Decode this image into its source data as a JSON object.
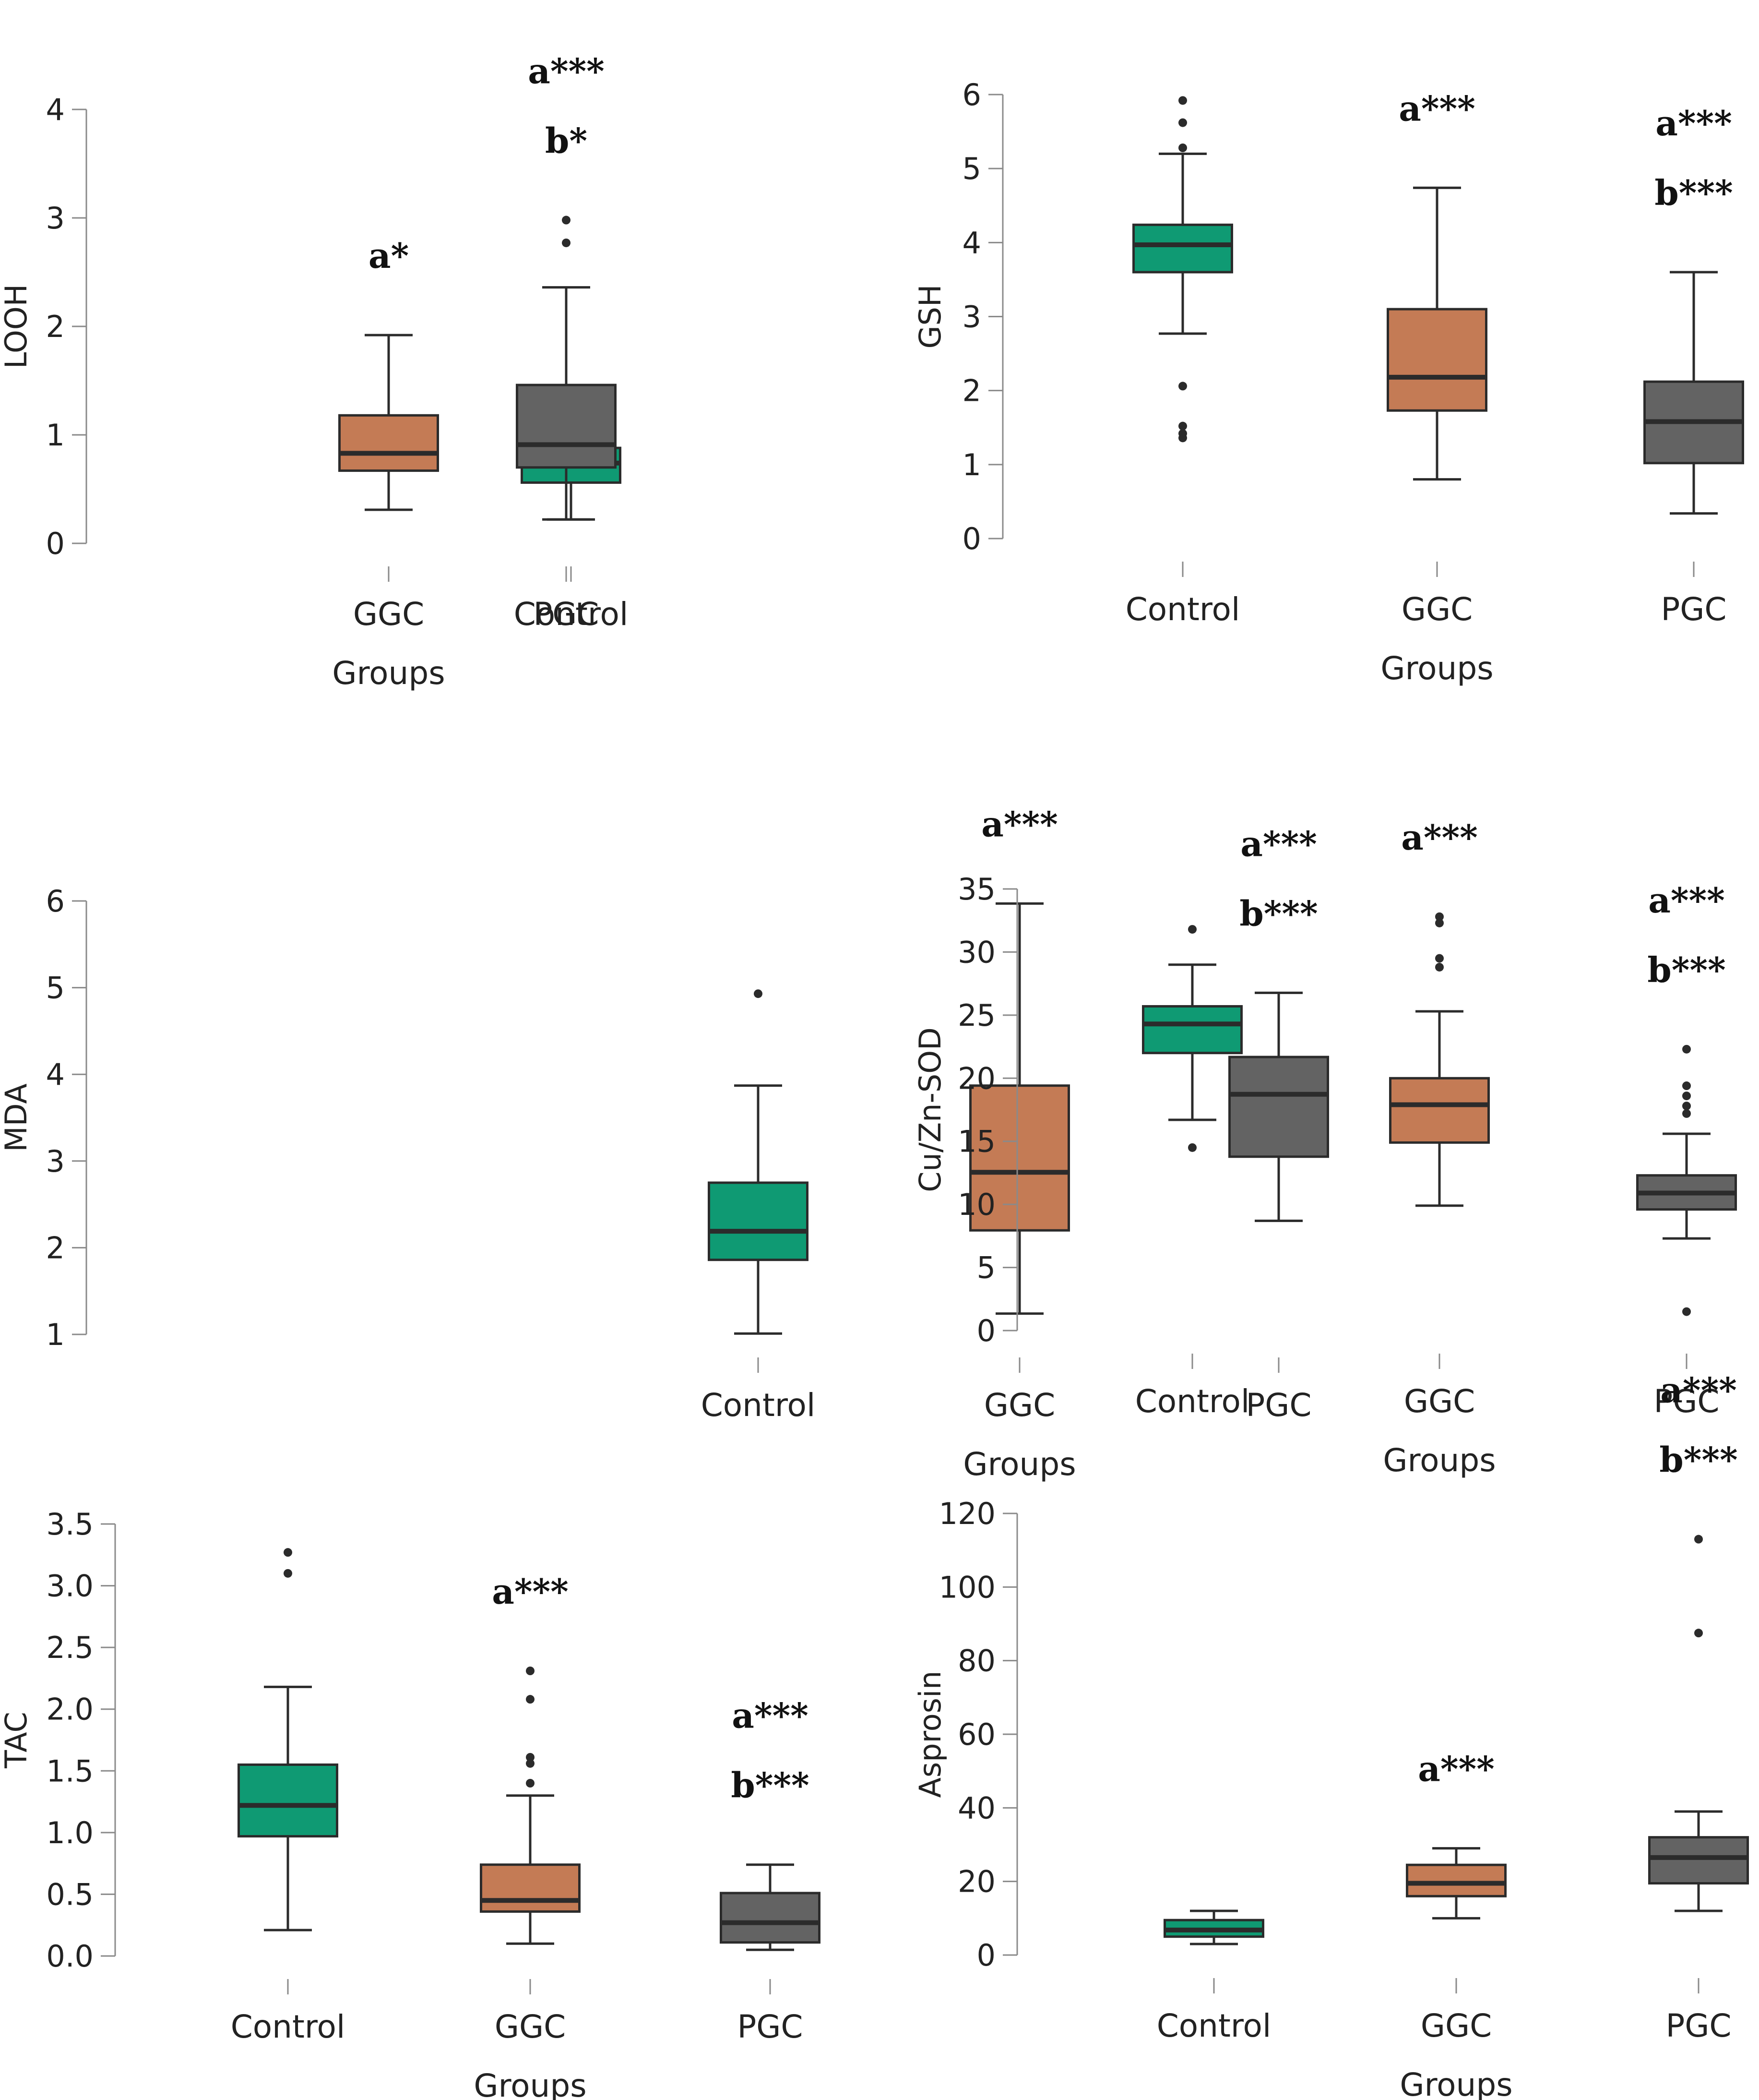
{
  "colors": {
    "Control": "#0f9a73",
    "GGC": "#c47b55",
    "PGC": "#636363",
    "line": "#2b2b2b",
    "axis": "#8a8a8a"
  },
  "chart_data": [
    {
      "type": "boxplot",
      "ylabel": "LOOH",
      "xlabel": "Groups",
      "categories": [
        "Control",
        "GGC",
        "PGC"
      ],
      "ylim": [
        0,
        4
      ],
      "yticks": [
        0,
        1,
        2,
        3,
        4
      ],
      "ytick_labels": [
        "0",
        "1",
        "2",
        "3",
        "4"
      ],
      "boxes": [
        {
          "group": "Control",
          "whisker_low": 0.22,
          "q1": 0.56,
          "median": 0.74,
          "q3": 0.88,
          "whisker_high": 1.2,
          "outliers": []
        },
        {
          "group": "GGC",
          "whisker_low": 0.31,
          "q1": 0.67,
          "median": 0.83,
          "q3": 1.18,
          "whisker_high": 1.92,
          "outliers": []
        },
        {
          "group": "PGC",
          "whisker_low": 0.22,
          "q1": 0.7,
          "median": 0.91,
          "q3": 1.46,
          "whisker_high": 2.36,
          "outliers": [
            2.77,
            2.98
          ]
        }
      ],
      "annotations": [
        {
          "group": "GGC",
          "lines": [
            "a*"
          ]
        },
        {
          "group": "PGC",
          "lines": [
            "a***",
            "b*"
          ]
        }
      ]
    },
    {
      "type": "boxplot",
      "ylabel": "GSH",
      "xlabel": "Groups",
      "categories": [
        "Control",
        "GGC",
        "PGC"
      ],
      "ylim": [
        0,
        6
      ],
      "yticks": [
        0,
        1,
        2,
        3,
        4,
        5,
        6
      ],
      "ytick_labels": [
        "0",
        "1",
        "2",
        "3",
        "4",
        "5",
        "6"
      ],
      "boxes": [
        {
          "group": "Control",
          "whisker_low": 2.77,
          "q1": 3.6,
          "median": 3.97,
          "q3": 4.24,
          "whisker_high": 5.2,
          "outliers": [
            5.28,
            5.62,
            5.92,
            2.06,
            1.52,
            1.42,
            1.36
          ]
        },
        {
          "group": "GGC",
          "whisker_low": 0.8,
          "q1": 1.73,
          "median": 2.18,
          "q3": 3.1,
          "whisker_high": 4.74,
          "outliers": []
        },
        {
          "group": "PGC",
          "whisker_low": 0.34,
          "q1": 1.02,
          "median": 1.58,
          "q3": 2.12,
          "whisker_high": 3.6,
          "outliers": []
        }
      ],
      "annotations": [
        {
          "group": "GGC",
          "lines": [
            "a***"
          ]
        },
        {
          "group": "PGC",
          "lines": [
            "a***",
            "b***"
          ]
        }
      ]
    },
    {
      "type": "boxplot",
      "ylabel": "MDA",
      "xlabel": "Groups",
      "categories": [
        "Control",
        "GGC",
        "PGC"
      ],
      "ylim": [
        1,
        6
      ],
      "yticks": [
        1,
        2,
        3,
        4,
        5,
        6
      ],
      "ytick_labels": [
        "1",
        "2",
        "3",
        "4",
        "5",
        "6"
      ],
      "boxes": [
        {
          "group": "Control",
          "whisker_low": 1.01,
          "q1": 1.86,
          "median": 2.19,
          "q3": 2.75,
          "whisker_high": 3.87,
          "outliers": [
            4.93
          ]
        },
        {
          "group": "GGC",
          "whisker_low": 1.24,
          "q1": 2.2,
          "median": 2.87,
          "q3": 3.87,
          "whisker_high": 5.97,
          "outliers": []
        },
        {
          "group": "PGC",
          "whisker_low": 2.31,
          "q1": 3.05,
          "median": 3.77,
          "q3": 4.2,
          "whisker_high": 4.94,
          "outliers": []
        }
      ],
      "annotations": [
        {
          "group": "GGC",
          "lines": [
            "a***"
          ]
        },
        {
          "group": "PGC",
          "lines": [
            "a***",
            "b***"
          ]
        }
      ]
    },
    {
      "type": "boxplot",
      "ylabel": "Cu/Zn-SOD",
      "xlabel": "Groups",
      "categories": [
        "Control",
        "GGC",
        "PGC"
      ],
      "ylim": [
        0,
        35
      ],
      "yticks": [
        0,
        5,
        10,
        15,
        20,
        25,
        30,
        35
      ],
      "ytick_labels": [
        "0",
        "5",
        "10",
        "15",
        "20",
        "25",
        "30",
        "35"
      ],
      "boxes": [
        {
          "group": "Control",
          "whisker_low": 16.7,
          "q1": 22.0,
          "median": 24.3,
          "q3": 25.7,
          "whisker_high": 29.0,
          "outliers": [
            31.8,
            14.5
          ]
        },
        {
          "group": "GGC",
          "whisker_low": 9.9,
          "q1": 14.9,
          "median": 17.9,
          "q3": 20.0,
          "whisker_high": 25.3,
          "outliers": [
            28.8,
            29.5,
            32.3,
            32.8
          ]
        },
        {
          "group": "PGC",
          "whisker_low": 7.3,
          "q1": 9.6,
          "median": 10.9,
          "q3": 12.3,
          "whisker_high": 15.6,
          "outliers": [
            17.2,
            17.8,
            18.6,
            19.4,
            22.3,
            1.5
          ]
        }
      ],
      "annotations": [
        {
          "group": "GGC",
          "lines": [
            "a***"
          ]
        },
        {
          "group": "PGC",
          "lines": [
            "a***",
            "b***"
          ]
        }
      ]
    },
    {
      "type": "boxplot",
      "ylabel": "TAC",
      "xlabel": "Groups",
      "categories": [
        "Control",
        "GGC",
        "PGC"
      ],
      "ylim": [
        0,
        3.5
      ],
      "yticks": [
        0,
        0.5,
        1,
        1.5,
        2,
        2.5,
        3,
        3.5
      ],
      "ytick_labels": [
        "0.0",
        "0.5",
        "1.0",
        "1.5",
        "2.0",
        "2.5",
        "3.0",
        "3.5"
      ],
      "boxes": [
        {
          "group": "Control",
          "whisker_low": 0.21,
          "q1": 0.97,
          "median": 1.22,
          "q3": 1.55,
          "whisker_high": 2.18,
          "outliers": [
            3.1,
            3.27
          ]
        },
        {
          "group": "GGC",
          "whisker_low": 0.1,
          "q1": 0.36,
          "median": 0.45,
          "q3": 0.74,
          "whisker_high": 1.3,
          "outliers": [
            1.4,
            1.56,
            1.61,
            2.08,
            2.31
          ]
        },
        {
          "group": "PGC",
          "whisker_low": 0.05,
          "q1": 0.11,
          "median": 0.27,
          "q3": 0.51,
          "whisker_high": 0.74,
          "outliers": []
        }
      ],
      "annotations": [
        {
          "group": "GGC",
          "lines": [
            "a***"
          ]
        },
        {
          "group": "PGC",
          "lines": [
            "a***",
            "b***"
          ]
        }
      ]
    },
    {
      "type": "boxplot",
      "ylabel": "Asprosin",
      "xlabel": "Groups",
      "categories": [
        "Control",
        "GGC",
        "PGC"
      ],
      "ylim": [
        0,
        120
      ],
      "yticks": [
        0,
        20,
        40,
        60,
        80,
        100,
        120
      ],
      "ytick_labels": [
        "0",
        "20",
        "40",
        "60",
        "80",
        "100",
        "120"
      ],
      "boxes": [
        {
          "group": "Control",
          "whisker_low": 3,
          "q1": 5,
          "median": 6.8,
          "q3": 9.5,
          "whisker_high": 12,
          "outliers": []
        },
        {
          "group": "GGC",
          "whisker_low": 10,
          "q1": 16,
          "median": 19.5,
          "q3": 24.5,
          "whisker_high": 29,
          "outliers": []
        },
        {
          "group": "PGC",
          "whisker_low": 12,
          "q1": 19.5,
          "median": 26.5,
          "q3": 32,
          "whisker_high": 39,
          "outliers": [
            87.5,
            113
          ]
        }
      ],
      "annotations": [
        {
          "group": "GGC",
          "lines": [
            "a***"
          ]
        },
        {
          "group": "PGC",
          "lines": [
            "a***",
            "b***"
          ]
        }
      ]
    }
  ]
}
